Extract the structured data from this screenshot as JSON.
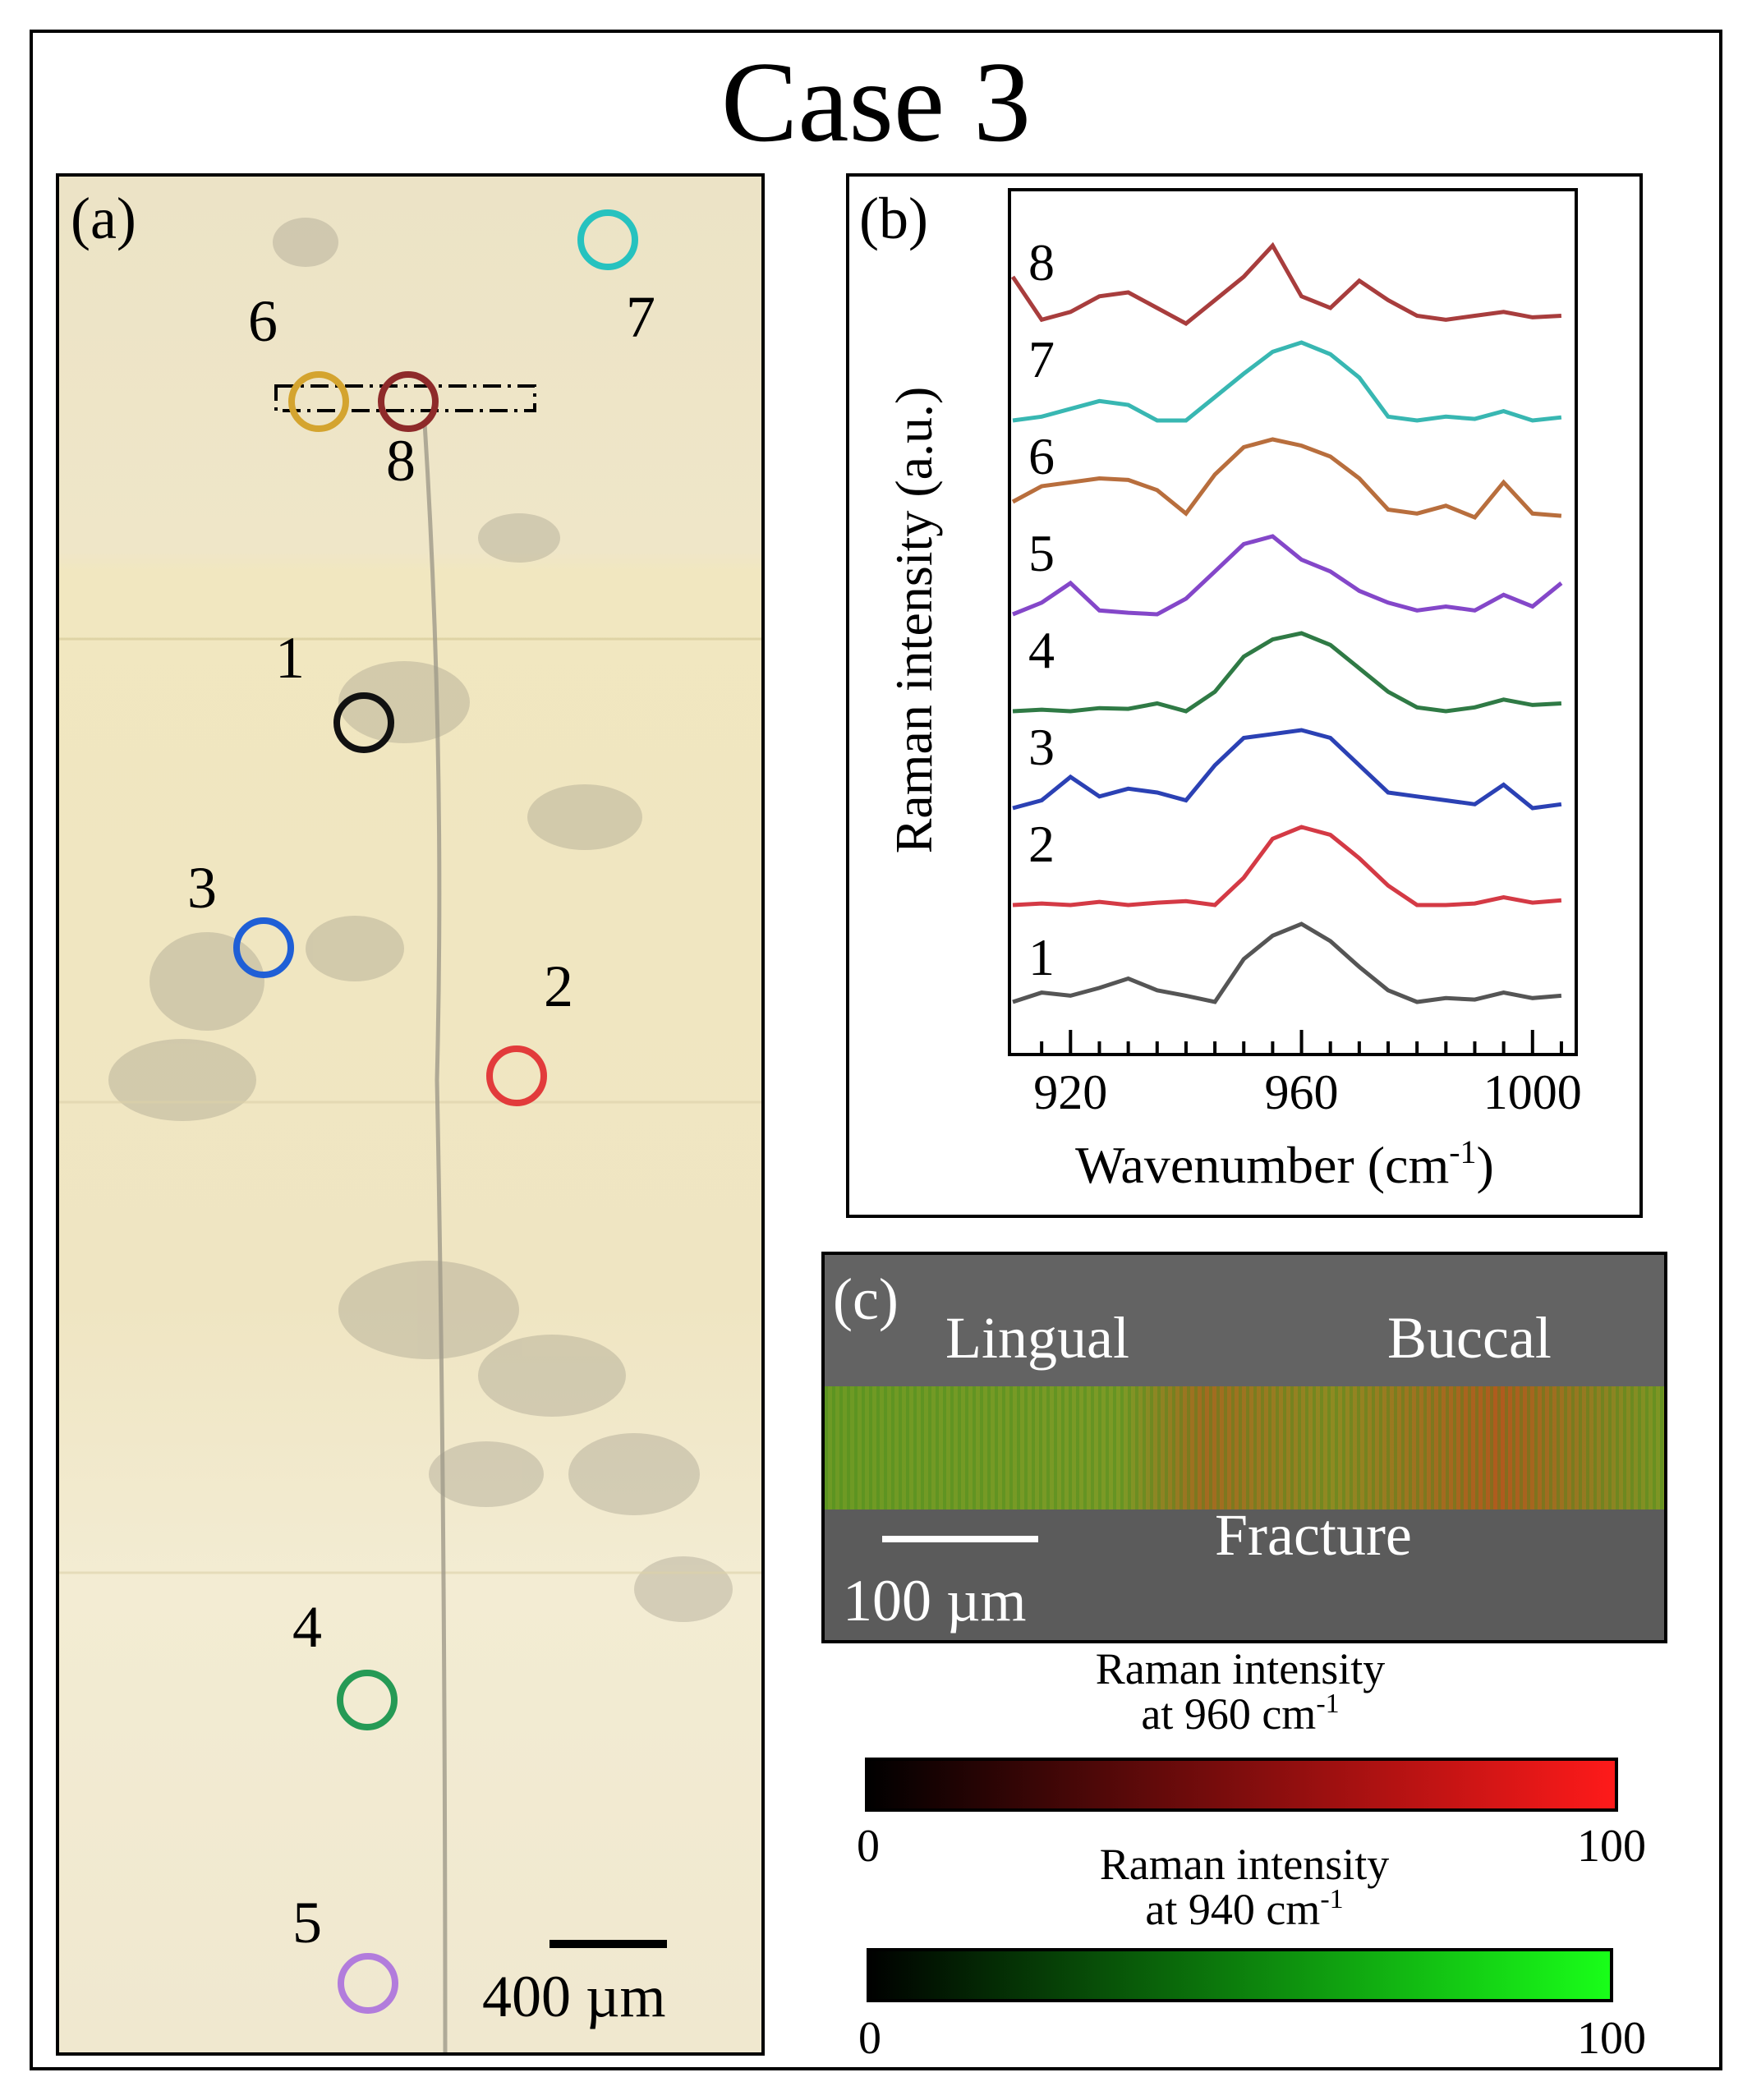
{
  "title": "Case 3",
  "colors": {
    "black": "#1a1a1a",
    "red": "#e23b3b",
    "blue": "#1f5fd6",
    "green": "#259a55",
    "purple": "#b27cdc",
    "goldenrod": "#d4a42f",
    "teal": "#26c2bf",
    "darkred": "#8e2a2a"
  },
  "panel_a": {
    "label": "(a)",
    "scale_bar": "400 µm",
    "points": [
      {
        "id": "1",
        "color": "#111111"
      },
      {
        "id": "2",
        "color": "#e23b3b"
      },
      {
        "id": "3",
        "color": "#1f5fd6"
      },
      {
        "id": "4",
        "color": "#259a55"
      },
      {
        "id": "5",
        "color": "#b27cdc"
      },
      {
        "id": "6",
        "color": "#d4a42f"
      },
      {
        "id": "7",
        "color": "#26c2bf"
      },
      {
        "id": "8",
        "color": "#8e2a2a"
      }
    ]
  },
  "chart_data": {
    "type": "line",
    "panel_label": "(b)",
    "xlabel": "Wavenumber (cm",
    "xlabel_sup": "-1",
    "xlabel_end": ")",
    "ylabel": "Raman intensity (a.u.)",
    "xlim": [
      910,
      1007
    ],
    "xticks": [
      920,
      960,
      1000
    ],
    "yticks": [],
    "grid": false,
    "x": [
      910,
      915,
      920,
      925,
      930,
      935,
      940,
      945,
      950,
      955,
      960,
      965,
      970,
      975,
      980,
      985,
      990,
      995,
      1000,
      1005
    ],
    "series": [
      {
        "name": "1",
        "color": "#555555",
        "offset": 0,
        "values": [
          0.0,
          0.12,
          0.08,
          0.18,
          0.3,
          0.15,
          0.08,
          0.0,
          0.55,
          0.85,
          1.0,
          0.78,
          0.45,
          0.15,
          0.0,
          0.05,
          0.03,
          0.12,
          0.05,
          0.08
        ]
      },
      {
        "name": "2",
        "color": "#d43a45",
        "offset": 1,
        "values": [
          0.0,
          0.02,
          0.0,
          0.04,
          0.0,
          0.03,
          0.05,
          0.0,
          0.35,
          0.85,
          1.0,
          0.9,
          0.6,
          0.25,
          0.0,
          0.0,
          0.02,
          0.1,
          0.03,
          0.06
        ]
      },
      {
        "name": "3",
        "color": "#2b41b4",
        "offset": 2,
        "values": [
          0.0,
          0.1,
          0.4,
          0.15,
          0.25,
          0.2,
          0.1,
          0.55,
          0.9,
          0.95,
          1.0,
          0.9,
          0.55,
          0.2,
          0.15,
          0.1,
          0.05,
          0.3,
          0.0,
          0.05
        ]
      },
      {
        "name": "4",
        "color": "#2f7a45",
        "offset": 3,
        "values": [
          0.0,
          0.02,
          0.0,
          0.04,
          0.03,
          0.1,
          0.0,
          0.25,
          0.7,
          0.92,
          1.0,
          0.85,
          0.55,
          0.25,
          0.05,
          0.0,
          0.05,
          0.15,
          0.08,
          0.1
        ]
      },
      {
        "name": "5",
        "color": "#8447c9",
        "offset": 4,
        "values": [
          0.0,
          0.15,
          0.4,
          0.05,
          0.02,
          0.0,
          0.2,
          0.55,
          0.9,
          1.0,
          0.7,
          0.55,
          0.3,
          0.15,
          0.05,
          0.1,
          0.05,
          0.25,
          0.1,
          0.4
        ]
      },
      {
        "name": "6",
        "color": "#b86e3d",
        "offset": 5,
        "values": [
          0.2,
          0.4,
          0.45,
          0.5,
          0.48,
          0.35,
          0.05,
          0.55,
          0.9,
          1.0,
          0.92,
          0.78,
          0.5,
          0.1,
          0.05,
          0.15,
          0.0,
          0.45,
          0.05,
          0.02
        ]
      },
      {
        "name": "7",
        "color": "#38b7b2",
        "offset": 6,
        "values": [
          0.0,
          0.05,
          0.15,
          0.25,
          0.2,
          0.0,
          0.0,
          0.3,
          0.6,
          0.88,
          1.0,
          0.85,
          0.55,
          0.05,
          0.0,
          0.05,
          0.02,
          0.12,
          0.0,
          0.04
        ]
      },
      {
        "name": "8",
        "color": "#a83d3d",
        "offset": 7,
        "values": [
          0.6,
          0.05,
          0.15,
          0.35,
          0.4,
          0.2,
          0.0,
          0.3,
          0.6,
          1.0,
          0.35,
          0.2,
          0.55,
          0.3,
          0.1,
          0.05,
          0.1,
          0.15,
          0.08,
          0.1
        ]
      }
    ]
  },
  "panel_c": {
    "label": "(c)",
    "lingual": "Lingual",
    "buccal": "Buccal",
    "fracture": "Fracture",
    "scale_bar": "100 µm"
  },
  "legend": {
    "red_title_1": "Raman intensity",
    "red_title_2": "at 960 cm",
    "red_sup": "-1",
    "green_title_1": "Raman intensity",
    "green_title_2": "at 940 cm",
    "green_sup": "-1",
    "min": "0",
    "max": "100"
  }
}
